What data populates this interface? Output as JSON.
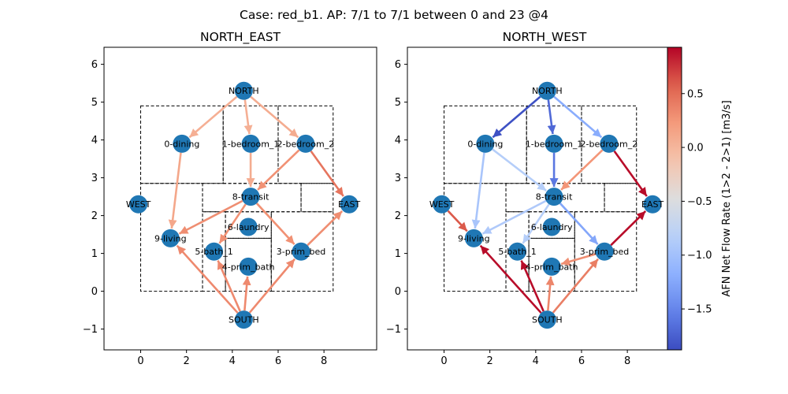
{
  "figure": {
    "title": "Case: red_b1. AP: 7/1 to 7/1 between 0 and 23 @4"
  },
  "colorbar": {
    "label": "AFN Net Flow Rate (1>2 - 2>1) [m3/s]",
    "min": -1.88,
    "max": 0.93,
    "ticks": [
      0.5,
      0.0,
      -0.5,
      -1.0,
      -1.5
    ],
    "tick_labels": [
      "0.5",
      "0.0",
      "−0.5",
      "−1.0",
      "−1.5"
    ],
    "colormap": "coolwarm"
  },
  "axes": {
    "xlim": [
      -1.6,
      10.3
    ],
    "ylim": [
      -1.55,
      6.45
    ],
    "x_ticks": [
      0,
      2,
      4,
      6,
      8
    ],
    "x_tick_labels": [
      "0",
      "2",
      "4",
      "6",
      "8"
    ],
    "y_ticks": [
      -1,
      0,
      1,
      2,
      3,
      4,
      5,
      6
    ],
    "y_tick_labels": [
      "−1",
      "0",
      "1",
      "2",
      "3",
      "4",
      "5",
      "6"
    ]
  },
  "node_color": "#1f77b4",
  "nodes": [
    {
      "id": "NORTH",
      "label": "NORTH",
      "x": 4.5,
      "y": 5.3
    },
    {
      "id": "0-dining",
      "label": "0-dining",
      "x": 1.8,
      "y": 3.9
    },
    {
      "id": "1-bedroom_1",
      "label": "1-bedroom_1",
      "x": 4.8,
      "y": 3.9
    },
    {
      "id": "2-bedroom_2",
      "label": "2-bedroom_2",
      "x": 7.2,
      "y": 3.9
    },
    {
      "id": "8-transit",
      "label": "8-transit",
      "x": 4.8,
      "y": 2.5
    },
    {
      "id": "WEST",
      "label": "WEST",
      "x": -0.1,
      "y": 2.3
    },
    {
      "id": "EAST",
      "label": "EAST",
      "x": 9.1,
      "y": 2.3
    },
    {
      "id": "6-laundry",
      "label": "6-laundry",
      "x": 4.7,
      "y": 1.7
    },
    {
      "id": "9-living",
      "label": "9-living",
      "x": 1.3,
      "y": 1.4
    },
    {
      "id": "5-bath_1",
      "label": "5-bath_1",
      "x": 3.2,
      "y": 1.05
    },
    {
      "id": "3-prim_bed",
      "label": "3-prim_bed",
      "x": 7.0,
      "y": 1.05
    },
    {
      "id": "4-prim_bath",
      "label": "4-prim_bath",
      "x": 4.7,
      "y": 0.65
    },
    {
      "id": "SOUTH",
      "label": "SOUTH",
      "x": 4.5,
      "y": -0.75
    }
  ],
  "rooms": [
    {
      "x0": 0.0,
      "y0": 2.85,
      "x1": 3.6,
      "y1": 4.9
    },
    {
      "x0": 3.6,
      "y0": 2.85,
      "x1": 6.0,
      "y1": 4.9
    },
    {
      "x0": 6.0,
      "y0": 2.85,
      "x1": 8.4,
      "y1": 4.9
    },
    {
      "x0": 2.7,
      "y0": 2.1,
      "x1": 7.0,
      "y1": 2.85
    },
    {
      "x0": 7.0,
      "y0": 2.1,
      "x1": 8.4,
      "y1": 2.85
    },
    {
      "x0": 0.0,
      "y0": 0.0,
      "x1": 2.7,
      "y1": 2.85
    },
    {
      "x0": 3.7,
      "y0": 1.4,
      "x1": 5.7,
      "y1": 2.1
    },
    {
      "x0": 2.7,
      "y0": 0.0,
      "x1": 3.7,
      "y1": 2.1
    },
    {
      "x0": 3.7,
      "y0": 0.0,
      "x1": 5.7,
      "y1": 1.4
    },
    {
      "x0": 5.7,
      "y0": 0.0,
      "x1": 8.4,
      "y1": 2.1
    }
  ],
  "panels": [
    {
      "title": "NORTH_EAST",
      "edges": [
        {
          "from": "NORTH",
          "to": "0-dining",
          "value": 0.05
        },
        {
          "from": "NORTH",
          "to": "1-bedroom_1",
          "value": 0.05
        },
        {
          "from": "NORTH",
          "to": "2-bedroom_2",
          "value": 0.08
        },
        {
          "from": "0-dining",
          "to": "9-living",
          "value": 0.12
        },
        {
          "from": "1-bedroom_1",
          "to": "8-transit",
          "value": 0.08
        },
        {
          "from": "2-bedroom_2",
          "to": "8-transit",
          "value": 0.28
        },
        {
          "from": "2-bedroom_2",
          "to": "EAST",
          "value": 0.45
        },
        {
          "from": "8-transit",
          "to": "9-living",
          "value": 0.3
        },
        {
          "from": "8-transit",
          "to": "5-bath_1",
          "value": 0.28
        },
        {
          "from": "8-transit",
          "to": "3-prim_bed",
          "value": 0.28
        },
        {
          "from": "3-prim_bed",
          "to": "EAST",
          "value": 0.3
        },
        {
          "from": "SOUTH",
          "to": "9-living",
          "value": 0.33
        },
        {
          "from": "SOUTH",
          "to": "5-bath_1",
          "value": 0.33
        },
        {
          "from": "SOUTH",
          "to": "4-prim_bath",
          "value": 0.33
        },
        {
          "from": "SOUTH",
          "to": "3-prim_bed",
          "value": 0.33
        }
      ]
    },
    {
      "title": "NORTH_WEST",
      "edges": [
        {
          "from": "NORTH",
          "to": "0-dining",
          "value": -1.85
        },
        {
          "from": "NORTH",
          "to": "1-bedroom_1",
          "value": -1.7
        },
        {
          "from": "NORTH",
          "to": "2-bedroom_2",
          "value": -1.2
        },
        {
          "from": "0-dining",
          "to": "9-living",
          "value": -0.95
        },
        {
          "from": "0-dining",
          "to": "8-transit",
          "value": -0.85
        },
        {
          "from": "1-bedroom_1",
          "to": "8-transit",
          "value": -1.6
        },
        {
          "from": "2-bedroom_2",
          "to": "8-transit",
          "value": 0.25
        },
        {
          "from": "2-bedroom_2",
          "to": "EAST",
          "value": 0.9
        },
        {
          "from": "WEST",
          "to": "9-living",
          "value": 0.6
        },
        {
          "from": "8-transit",
          "to": "9-living",
          "value": -0.9
        },
        {
          "from": "8-transit",
          "to": "5-bath_1",
          "value": -0.85
        },
        {
          "from": "8-transit",
          "to": "3-prim_bed",
          "value": -1.25
        },
        {
          "from": "3-prim_bed",
          "to": "EAST",
          "value": 0.9
        },
        {
          "from": "3-prim_bed",
          "to": "4-prim_bath",
          "value": 0.3
        },
        {
          "from": "SOUTH",
          "to": "9-living",
          "value": 0.9
        },
        {
          "from": "SOUTH",
          "to": "5-bath_1",
          "value": 0.9
        },
        {
          "from": "SOUTH",
          "to": "4-prim_bath",
          "value": 0.35
        },
        {
          "from": "SOUTH",
          "to": "3-prim_bed",
          "value": 0.4
        }
      ]
    }
  ]
}
